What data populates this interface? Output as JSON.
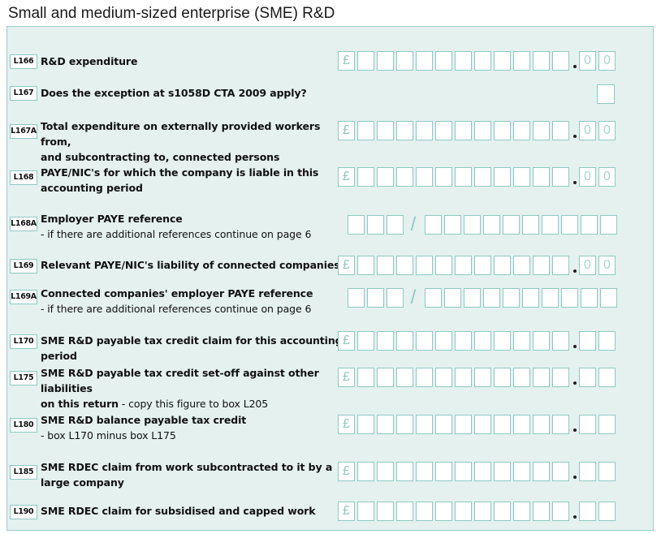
{
  "title": "Small and medium-sized enterprise (SME) R&D",
  "symbols": {
    "pound": "£",
    "zero": "0",
    "slash": "/"
  },
  "rows": [
    {
      "code": "L166",
      "line1": "R&D expenditure",
      "line2": "",
      "note": "",
      "field": "amount-pence-zero"
    },
    {
      "code": "L167",
      "line1": "Does the exception at s1058D CTA 2009 apply?",
      "line2": "",
      "note": "",
      "field": "checkbox"
    },
    {
      "code": "L167A",
      "line1": "Total expenditure on externally provided workers from,",
      "line2": "and subcontracting to, connected persons",
      "note": "",
      "field": "amount-pence-zero"
    },
    {
      "code": "L168",
      "line1": "PAYE/NIC's for which the company is liable in this",
      "line2": "accounting period",
      "note": "",
      "field": "amount-pence-zero"
    },
    {
      "code": "L168A",
      "line1": "Employer PAYE reference",
      "line2": "",
      "note": "- if there are additional references continue on page 6",
      "field": "paye"
    },
    {
      "code": "L169",
      "line1": "Relevant PAYE/NIC's liability of connected companies",
      "line2": "",
      "note": "",
      "field": "amount-pence-zero"
    },
    {
      "code": "L169A",
      "line1": "Connected companies' employer PAYE reference",
      "line2": "",
      "note": "- if there are additional references continue on page 6",
      "field": "paye"
    },
    {
      "code": "L170",
      "line1": "SME R&D payable tax credit claim for this accounting period",
      "line2": "",
      "note": "",
      "field": "amount"
    },
    {
      "code": "L175",
      "line1": "SME R&D payable tax credit set-off against other liabilities",
      "line2": "",
      "line2b": "on this return",
      "note": " - copy this figure to box L205",
      "field": "amount"
    },
    {
      "code": "L180",
      "line1": "SME R&D balance payable tax credit",
      "line2": "",
      "note": "- box L170 minus box L175",
      "field": "amount"
    },
    {
      "code": "L185",
      "line1": "SME RDEC claim from work subcontracted to it by a",
      "line2": "large company",
      "note": "",
      "field": "amount"
    },
    {
      "code": "L190",
      "line1": "SME RDEC claim for subsidised and capped work",
      "line2": "",
      "note": "",
      "field": "amount"
    }
  ]
}
